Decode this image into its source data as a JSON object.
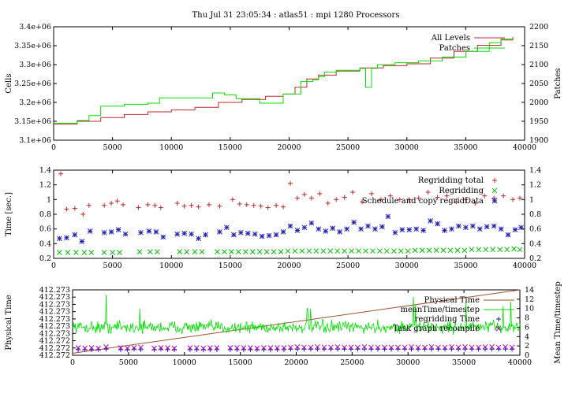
{
  "title": "Thu Jul 31 23:05:34 : atlas51 : mpi 1280 Processors",
  "colors": {
    "red": "#c0282d",
    "green": "#00e000",
    "blue": "#2020b0",
    "magenta": "#b000b0",
    "brown": "#a0522d",
    "ylabel_left": "#c0282d",
    "ylabel_right": "#2aa02a"
  },
  "chart_data": [
    {
      "type": "line",
      "ylabel_left": "Cells",
      "ylabel_right": "Patches",
      "xlim": [
        0,
        40000
      ],
      "ylim_left": [
        3100000,
        3400000
      ],
      "ylim_right": [
        1900,
        2200
      ],
      "xticks": [
        "0",
        "5000",
        "10000",
        "15000",
        "20000",
        "25000",
        "30000",
        "35000",
        "40000"
      ],
      "yticks_left": [
        "3.1e+06",
        "3.15e+06",
        "3.2e+06",
        "3.25e+06",
        "3.3e+06",
        "3.35e+06",
        "3.4e+06"
      ],
      "yticks_right": [
        "1900",
        "1950",
        "2000",
        "2050",
        "2100",
        "2150",
        "2200"
      ],
      "legend": [
        "All Levels",
        "Patches"
      ],
      "legend_position": "top-right",
      "series": [
        {
          "name": "All Levels",
          "axis": "left",
          "color": "#c0282d",
          "x": [
            0,
            2000,
            4000,
            6000,
            8000,
            10000,
            12000,
            14000,
            16000,
            18000,
            19500,
            20500,
            21500,
            22500,
            24000,
            26000,
            28000,
            30000,
            32000,
            34000,
            36000,
            38000,
            39000
          ],
          "values": [
            3143000,
            3150000,
            3160000,
            3168000,
            3175000,
            3180000,
            3187000,
            3200000,
            3208000,
            3216000,
            3222000,
            3240000,
            3262000,
            3272000,
            3283000,
            3291000,
            3297000,
            3302000,
            3317000,
            3335000,
            3351000,
            3365000,
            3373000
          ]
        },
        {
          "name": "Patches",
          "axis": "right",
          "color": "#00e000",
          "x": [
            0,
            2000,
            3000,
            4000,
            6000,
            8000,
            9000,
            12000,
            13500,
            14500,
            15500,
            17500,
            19500,
            21000,
            22000,
            22500,
            23000,
            24000,
            26000,
            26500,
            27000,
            27500,
            29000,
            31000,
            33000,
            35000,
            37000,
            38000,
            39000
          ],
          "values": [
            1945,
            1952,
            1965,
            1990,
            1995,
            1998,
            2012,
            2012,
            2025,
            2020,
            2010,
            1998,
            2022,
            2055,
            2060,
            2068,
            2080,
            2085,
            2090,
            2040,
            2090,
            2100,
            2105,
            2110,
            2120,
            2135,
            2158,
            2168,
            2165
          ]
        }
      ]
    },
    {
      "type": "scatter",
      "ylabel_left": "Time [sec.]",
      "xlim": [
        0,
        40000
      ],
      "ylim": [
        0.2,
        1.4
      ],
      "xticks": [
        "0",
        "5000",
        "10000",
        "15000",
        "20000",
        "25000",
        "30000",
        "35000",
        "40000"
      ],
      "yticks": [
        "0.2",
        "0.4",
        "0.6",
        "0.8",
        "1",
        "1.2",
        "1.4"
      ],
      "legend": [
        "Regridding total",
        "Regridding",
        "Schedule and copy regridData"
      ],
      "legend_position": "top-right",
      "series": [
        {
          "name": "Regridding total",
          "marker": "+",
          "color": "#c0282d",
          "x": [
            600,
            1100,
            1800,
            2500,
            3000,
            4300,
            4900,
            5400,
            5900,
            7200,
            8000,
            8600,
            9100,
            10500,
            11100,
            11700,
            12300,
            13200,
            14100,
            15200,
            15800,
            16400,
            17000,
            17600,
            18200,
            18900,
            19500,
            20100,
            20700,
            21300,
            21900,
            22600,
            23300,
            24000,
            24700,
            25400,
            26200,
            27000,
            27800,
            28600,
            29400,
            30200,
            31000,
            31800,
            32600,
            33400,
            34200,
            35000,
            35800,
            36600,
            37400,
            38200,
            39000,
            39600
          ],
          "values": [
            1.35,
            0.87,
            0.88,
            0.8,
            0.92,
            0.92,
            0.95,
            0.98,
            0.93,
            0.89,
            0.93,
            0.92,
            0.89,
            0.95,
            0.91,
            0.92,
            0.9,
            0.93,
            0.91,
            1.0,
            0.94,
            0.93,
            0.92,
            0.91,
            0.89,
            0.92,
            0.9,
            1.22,
            1.02,
            1.07,
            1.02,
            1.08,
            0.95,
            1.0,
            1.03,
            1.1,
            0.97,
            1.08,
            1.0,
            1.05,
            1.0,
            1.0,
            1.02,
            1.1,
            1.03,
            1.05,
            0.97,
            1.0,
            0.95,
            1.05,
            1.02,
            1.05,
            1.0,
            1.02
          ]
        },
        {
          "name": "Regridding",
          "marker": "x",
          "color": "#00c000",
          "x": [
            500,
            1200,
            1900,
            2600,
            3200,
            4300,
            5000,
            5600,
            7300,
            8200,
            8800,
            10700,
            11300,
            12000,
            12600,
            13900,
            14500,
            15100,
            15700,
            16300,
            16900,
            17500,
            18100,
            18700,
            19300,
            19900,
            20500,
            21100,
            21700,
            22300,
            22900,
            23500,
            24100,
            24700,
            25300,
            25900,
            26500,
            27100,
            27700,
            28300,
            28900,
            29500,
            30100,
            30700,
            31300,
            31900,
            32500,
            33100,
            33700,
            34300,
            34900,
            35500,
            36100,
            36700,
            37300,
            37900,
            38500,
            39100,
            39600
          ],
          "values": [
            0.28,
            0.28,
            0.28,
            0.28,
            0.28,
            0.28,
            0.28,
            0.28,
            0.29,
            0.29,
            0.29,
            0.29,
            0.29,
            0.29,
            0.29,
            0.29,
            0.29,
            0.29,
            0.29,
            0.29,
            0.29,
            0.29,
            0.29,
            0.29,
            0.29,
            0.3,
            0.3,
            0.3,
            0.3,
            0.3,
            0.3,
            0.3,
            0.3,
            0.3,
            0.3,
            0.3,
            0.3,
            0.3,
            0.3,
            0.3,
            0.3,
            0.3,
            0.3,
            0.31,
            0.31,
            0.31,
            0.31,
            0.31,
            0.31,
            0.31,
            0.31,
            0.32,
            0.32,
            0.32,
            0.32,
            0.32,
            0.32,
            0.33,
            0.32
          ]
        },
        {
          "name": "Schedule and copy regridData",
          "marker": "*",
          "color": "#2020b0",
          "x": [
            500,
            1100,
            1800,
            2400,
            3100,
            4300,
            4900,
            5500,
            6100,
            7400,
            8100,
            8700,
            9300,
            10500,
            11100,
            11700,
            12300,
            12900,
            14100,
            14700,
            15300,
            15900,
            16500,
            17100,
            17700,
            18300,
            18900,
            19500,
            20100,
            20700,
            21300,
            21900,
            22500,
            23100,
            23700,
            24300,
            24900,
            25500,
            26100,
            26700,
            27300,
            27900,
            28400,
            29000,
            29600,
            30200,
            30800,
            31400,
            32000,
            32600,
            33200,
            33800,
            34400,
            35000,
            35600,
            36200,
            36800,
            37400,
            38000,
            38600,
            39200,
            39700
          ],
          "values": [
            0.47,
            0.48,
            0.52,
            0.43,
            0.57,
            0.55,
            0.56,
            0.59,
            0.53,
            0.55,
            0.57,
            0.56,
            0.49,
            0.53,
            0.54,
            0.53,
            0.47,
            0.52,
            0.56,
            0.62,
            0.52,
            0.55,
            0.54,
            0.53,
            0.5,
            0.51,
            0.52,
            0.56,
            0.64,
            0.58,
            0.62,
            0.68,
            0.6,
            0.57,
            0.61,
            0.56,
            0.6,
            0.69,
            0.6,
            0.64,
            0.6,
            0.63,
            0.77,
            0.55,
            0.59,
            0.59,
            0.6,
            0.58,
            0.71,
            0.67,
            0.58,
            0.6,
            0.64,
            0.62,
            0.64,
            0.6,
            0.63,
            0.64,
            0.6,
            0.52,
            0.59,
            0.62
          ]
        }
      ]
    },
    {
      "type": "line",
      "ylabel_left": "Physical Time",
      "ylabel_right": "Mean Time/timestep",
      "xlim": [
        0,
        40000
      ],
      "ylim_right": [
        0,
        14
      ],
      "xticks": [
        "0",
        "5000",
        "10000",
        "15000",
        "20000",
        "25000",
        "30000",
        "35000",
        "40000"
      ],
      "yticks_left": [
        "412.272",
        "412.272",
        "412.272",
        "412.273",
        "412.273",
        "412.273",
        "412.273",
        "412.273",
        "412.273",
        "412.273"
      ],
      "yticks_right": [
        "0",
        "2",
        "4",
        "6",
        "8",
        "10",
        "12",
        "14"
      ],
      "legend": [
        "Physical Time",
        "meanTime/timestep",
        "regridding Time",
        "Task graph recompile"
      ],
      "legend_position": "top-right",
      "series": [
        {
          "name": "Physical Time",
          "axis": "left",
          "color": "#a0522d",
          "x": [
            0,
            40000
          ],
          "values_fraction_of_axis": [
            0.03,
            1.0
          ]
        },
        {
          "name": "meanTime/timestep",
          "axis": "right",
          "color": "#00e000",
          "baseline": 6.0,
          "noise": 1.0,
          "spikes": [
            [
              3000,
              13
            ],
            [
              4200,
              7.5
            ],
            [
              6000,
              10
            ],
            [
              21000,
              10
            ],
            [
              21300,
              10
            ],
            [
              30500,
              12.5
            ],
            [
              30700,
              10.8
            ],
            [
              35200,
              11.5
            ],
            [
              38500,
              10.5
            ],
            [
              39200,
              11.5
            ]
          ]
        },
        {
          "name": "regridding Time",
          "axis": "right",
          "color": "#2020b0",
          "marker": "+",
          "x": [
            500,
            1100,
            1700,
            2300,
            3000,
            4300,
            4900,
            5500,
            6100,
            7300,
            7900,
            8500,
            9100,
            10500,
            11100,
            11700,
            12300,
            12900,
            14100,
            14700,
            15300,
            15900,
            16500,
            17100,
            17700,
            18300,
            18900,
            19500,
            20100,
            20700,
            21300,
            21900,
            22500,
            23100,
            23700,
            24300,
            24900,
            25500,
            26100,
            26700,
            27300,
            27900,
            28500,
            29100,
            29700,
            30300,
            30900,
            31500,
            32100,
            32700,
            33300,
            33900,
            34500,
            35100,
            35700,
            36300,
            36900,
            37500,
            38100,
            38700,
            39300
          ],
          "values": [
            1.2,
            1.2,
            1.2,
            1.2,
            1.3,
            1.2,
            1.2,
            1.3,
            1.2,
            1.2,
            1.3,
            1.2,
            1.2,
            1.2,
            1.2,
            1.2,
            1.2,
            1.2,
            1.2,
            1.2,
            1.2,
            1.2,
            1.2,
            1.2,
            1.2,
            1.2,
            1.2,
            1.3,
            1.3,
            1.3,
            1.3,
            1.3,
            1.3,
            1.3,
            1.3,
            1.3,
            1.3,
            1.3,
            1.3,
            1.3,
            1.3,
            1.3,
            1.3,
            1.3,
            1.3,
            1.3,
            1.3,
            1.3,
            1.3,
            1.3,
            1.3,
            1.3,
            1.3,
            1.3,
            1.3,
            1.3,
            1.3,
            1.3,
            1.3,
            1.3,
            1.3
          ]
        },
        {
          "name": "Task graph recompile",
          "axis": "right",
          "color": "#b000b0",
          "marker": "x",
          "x": [
            500,
            1100,
            1700,
            2300,
            3000,
            4300,
            4900,
            5500,
            6100,
            7300,
            7900,
            8500,
            9100,
            10500,
            11100,
            11700,
            12300,
            12900,
            14100,
            14700,
            15300,
            15900,
            16500,
            17100,
            17700,
            18300,
            18900,
            19500,
            20100,
            20700,
            21300,
            21900,
            22500,
            23100,
            23700,
            24300,
            24900,
            25500,
            26100,
            26700,
            27300,
            27900,
            28500,
            29100,
            29700,
            30300,
            30900,
            31500,
            32100,
            32700,
            33300,
            33900,
            34500,
            35100,
            35700,
            36300,
            36900,
            37500,
            38100,
            38700,
            39300
          ],
          "values": [
            1.6,
            1.5,
            1.6,
            1.5,
            1.8,
            1.6,
            1.5,
            1.6,
            1.7,
            1.5,
            1.6,
            1.6,
            1.5,
            1.6,
            1.6,
            1.5,
            1.6,
            1.6,
            1.6,
            1.6,
            1.6,
            1.6,
            1.5,
            1.6,
            1.6,
            1.6,
            1.6,
            1.7,
            1.8,
            1.7,
            1.7,
            1.8,
            1.7,
            1.7,
            1.8,
            1.7,
            1.7,
            1.7,
            1.8,
            1.7,
            1.7,
            1.7,
            1.7,
            1.7,
            1.7,
            1.8,
            1.7,
            1.7,
            1.8,
            1.7,
            1.7,
            1.8,
            1.7,
            1.8,
            1.7,
            1.7,
            1.8,
            1.8,
            1.7,
            1.8,
            1.7
          ]
        }
      ]
    }
  ]
}
